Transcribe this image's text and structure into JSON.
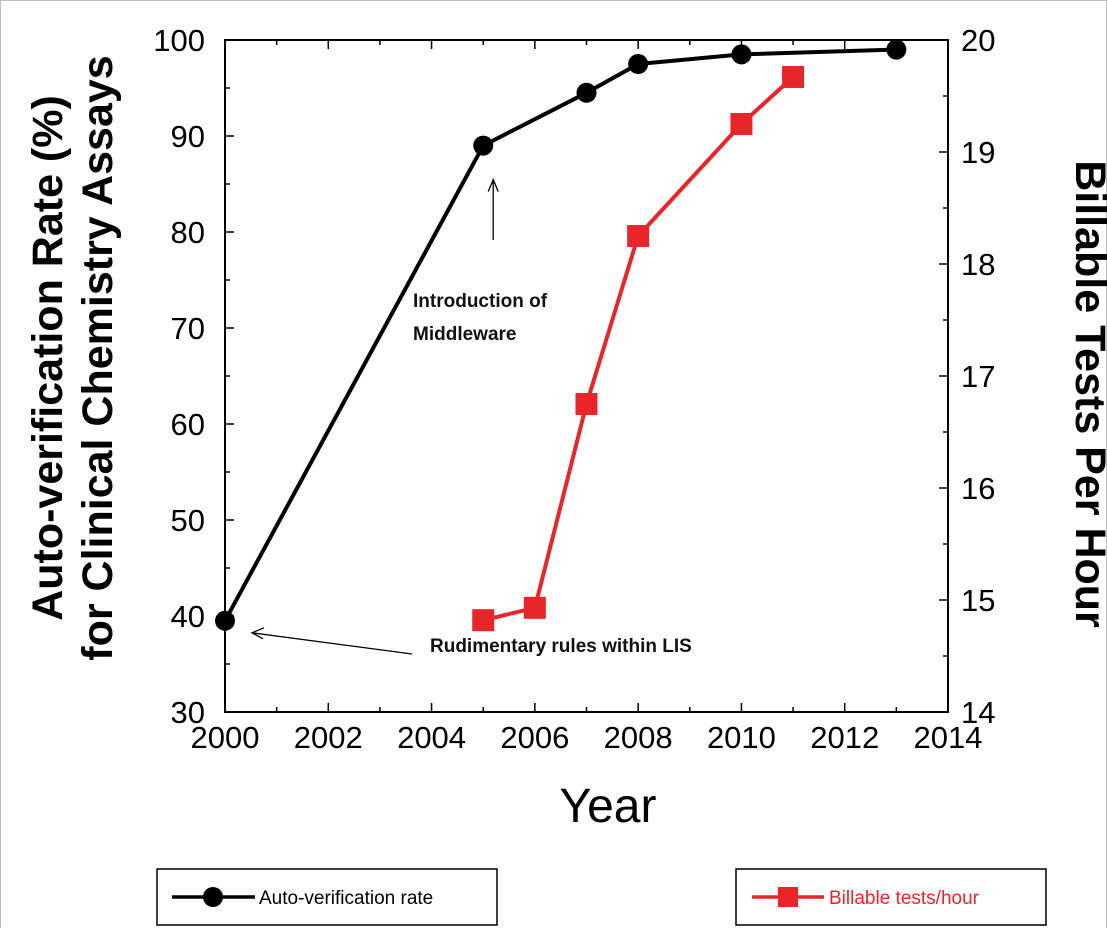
{
  "chart_data": {
    "type": "line",
    "x": [
      2000,
      2005,
      2007,
      2008,
      2010,
      2013
    ],
    "series": [
      {
        "name": "Auto-verification rate",
        "axis": "left",
        "color": "#000000",
        "marker": "circle",
        "x": [
          2000,
          2005,
          2007,
          2008,
          2010,
          2013
        ],
        "values": [
          39.5,
          89,
          94.5,
          97.5,
          98.5,
          99
        ]
      },
      {
        "name": "Billable tests/hour",
        "axis": "right",
        "color": "#e8262a",
        "marker": "square",
        "x": [
          2005,
          2006,
          2007,
          2008,
          2010,
          2011
        ],
        "values": [
          14.82,
          14.93,
          16.75,
          18.25,
          19.25,
          19.67
        ]
      }
    ],
    "xlabel": "Year",
    "ylabel_left_line1": "Auto-verification Rate (%)",
    "ylabel_left_line2": "for Clinical Chemistry Assays",
    "ylabel_right": "Billable Tests Per Hour",
    "xlim": [
      2000,
      2014
    ],
    "ylim_left": [
      30,
      100
    ],
    "ylim_right": [
      14,
      20
    ],
    "x_ticks": [
      "2000",
      "2002",
      "2004",
      "2006",
      "2008",
      "2010",
      "2012",
      "2014"
    ],
    "y_ticks_left": [
      "30",
      "40",
      "50",
      "60",
      "70",
      "80",
      "90",
      "100"
    ],
    "y_ticks_right": [
      "14",
      "15",
      "16",
      "17",
      "18",
      "19",
      "20"
    ],
    "annotations": [
      {
        "id": "middleware",
        "lines": [
          "Introduction of",
          "Middleware"
        ],
        "target_x": 2005,
        "target_y": 89
      },
      {
        "id": "lis",
        "lines": [
          "Rudimentary rules within LIS"
        ],
        "target_x": 2000,
        "target_y": 39.5
      }
    ],
    "grid": false,
    "legend": {
      "placement": "bottom",
      "entries": [
        "Auto-verification rate",
        "Billable tests/hour"
      ]
    }
  }
}
